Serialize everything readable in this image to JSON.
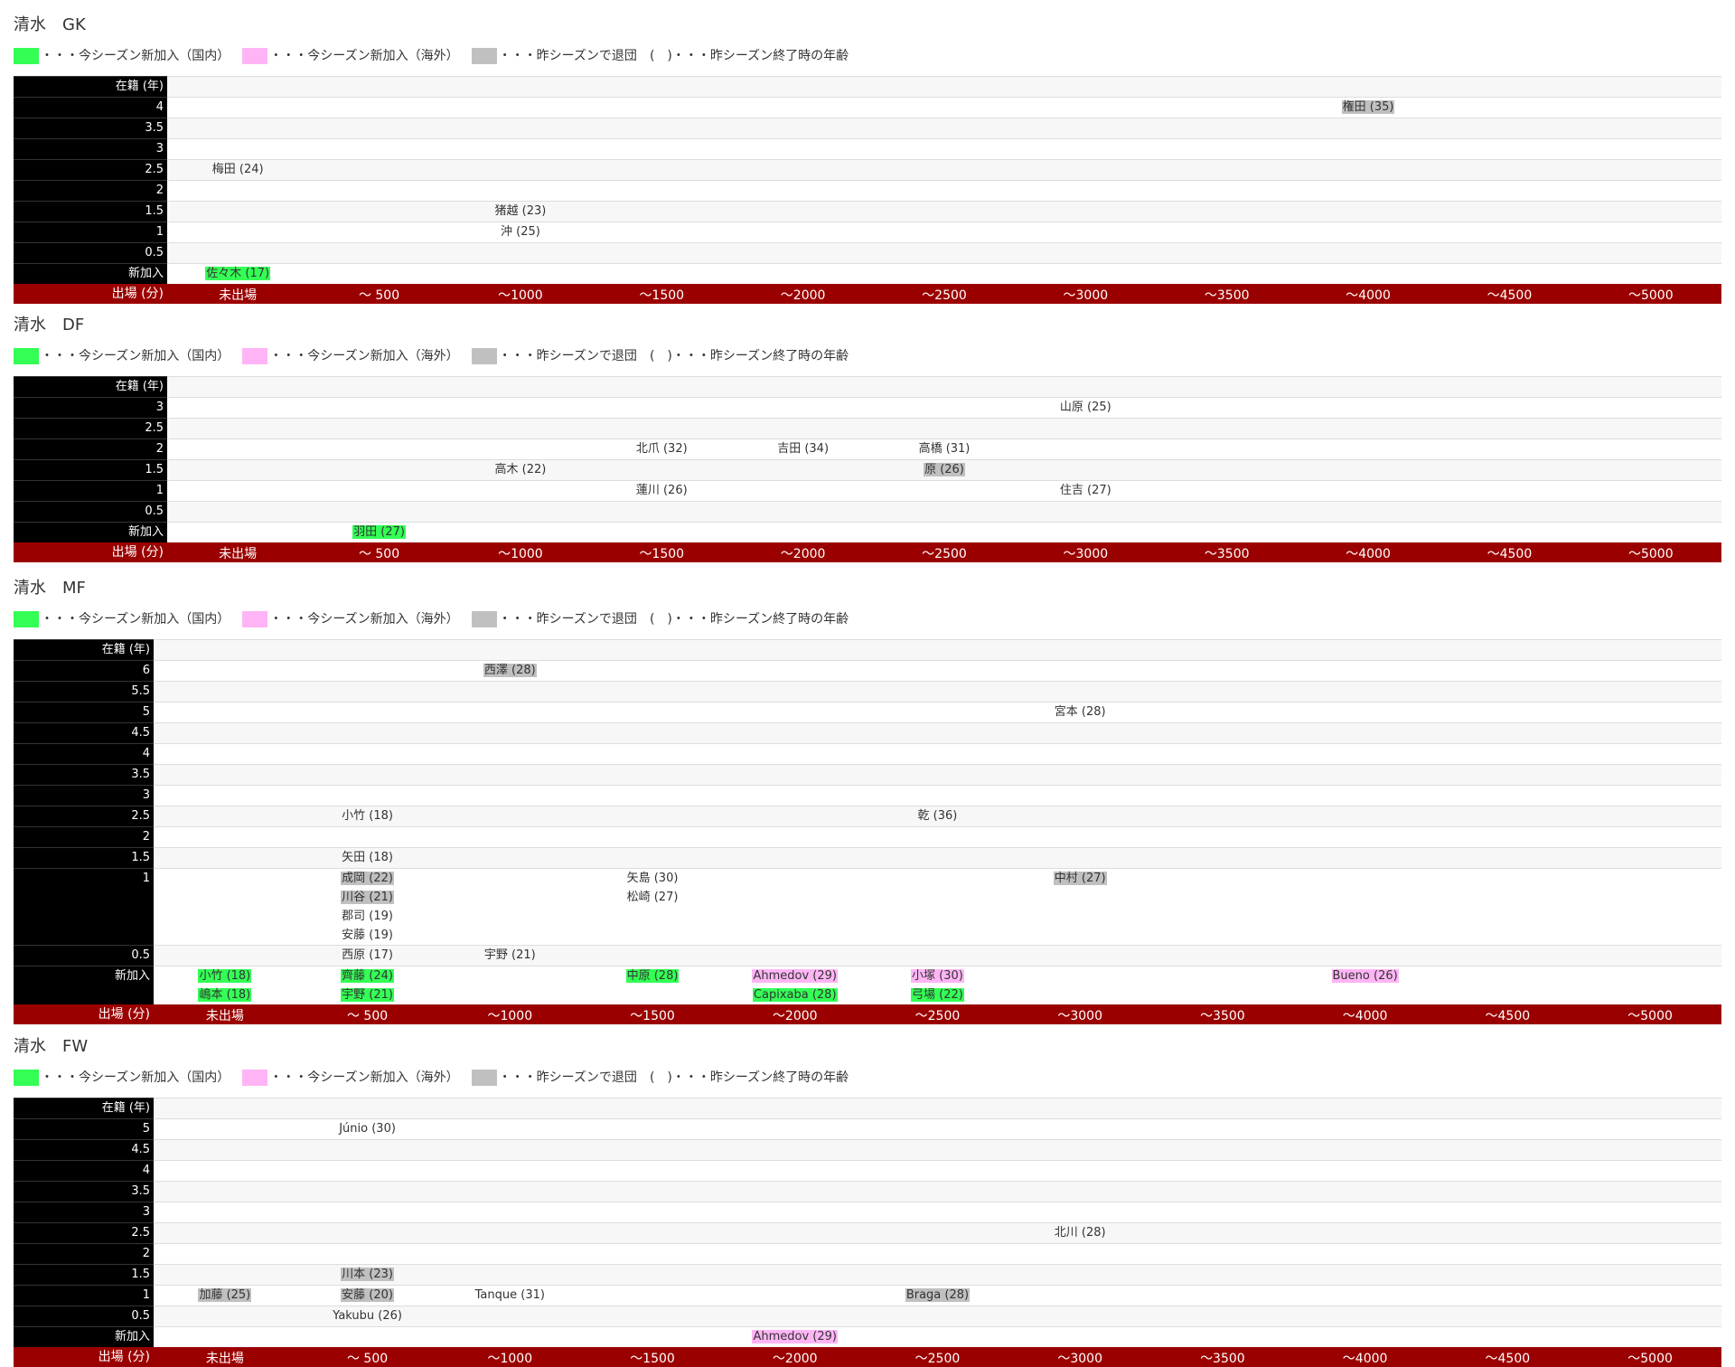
{
  "legend": {
    "domestic": "・・・今シーズン新加入（国内）",
    "overseas": "・・・今シーズン新加入（海外）",
    "retired": "・・・昨シーズンで退団",
    "age": "(　)・・・昨シーズン終了時の年齢"
  },
  "colors": {
    "domestic": "#33ff55",
    "overseas": "#ffb5f5",
    "retired": "#c0c0c0",
    "axis": "#9b0000"
  },
  "sections": [
    {
      "title": "清水　GK",
      "label_col": "在籍 (年)",
      "axis_label": "出場 (分)",
      "axis": [
        "未出場",
        "～ 500",
        "～1000",
        "～1500",
        "～2000",
        "～2500",
        "～3000",
        "～3500",
        "～4000",
        "～4500",
        "～5000"
      ],
      "rows": [
        {
          "label": "4",
          "cells": {
            "8": [
              {
                "text": "権田 (35)",
                "type": "ret"
              }
            ]
          }
        },
        {
          "label": "3.5",
          "cells": {}
        },
        {
          "label": "3",
          "cells": {}
        },
        {
          "label": "2.5",
          "cells": {
            "0": [
              {
                "text": "梅田 (24)",
                "type": ""
              }
            ]
          }
        },
        {
          "label": "2",
          "cells": {}
        },
        {
          "label": "1.5",
          "cells": {
            "2": [
              {
                "text": "猪越 (23)",
                "type": ""
              }
            ]
          }
        },
        {
          "label": "1",
          "cells": {
            "2": [
              {
                "text": "沖 (25)",
                "type": ""
              }
            ]
          }
        },
        {
          "label": "0.5",
          "cells": {}
        },
        {
          "label": "新加入",
          "cells": {
            "0": [
              {
                "text": "佐々木 (17)",
                "type": "dom"
              }
            ]
          }
        }
      ]
    },
    {
      "title": "清水　DF",
      "label_col": "在籍 (年)",
      "axis_label": "出場 (分)",
      "axis": [
        "未出場",
        "～ 500",
        "～1000",
        "～1500",
        "～2000",
        "～2500",
        "～3000",
        "～3500",
        "～4000",
        "～4500",
        "～5000"
      ],
      "rows": [
        {
          "label": "3",
          "cells": {
            "6": [
              {
                "text": "山原 (25)",
                "type": ""
              }
            ]
          }
        },
        {
          "label": "2.5",
          "cells": {}
        },
        {
          "label": "2",
          "cells": {
            "3": [
              {
                "text": "北爪 (32)",
                "type": ""
              }
            ],
            "4": [
              {
                "text": "吉田 (34)",
                "type": ""
              }
            ],
            "5": [
              {
                "text": "高橋 (31)",
                "type": ""
              }
            ]
          }
        },
        {
          "label": "1.5",
          "cells": {
            "2": [
              {
                "text": "高木 (22)",
                "type": ""
              }
            ],
            "5": [
              {
                "text": "原 (26)",
                "type": "ret"
              }
            ]
          }
        },
        {
          "label": "1",
          "cells": {
            "3": [
              {
                "text": "蓮川 (26)",
                "type": ""
              }
            ],
            "6": [
              {
                "text": "住吉 (27)",
                "type": ""
              }
            ]
          }
        },
        {
          "label": "0.5",
          "cells": {}
        },
        {
          "label": "新加入",
          "cells": {
            "1": [
              {
                "text": "羽田 (27)",
                "type": "dom"
              }
            ]
          }
        }
      ]
    },
    {
      "title": "清水　MF",
      "label_col": "在籍 (年)",
      "axis_label": "出場 (分)",
      "axis": [
        "未出場",
        "～ 500",
        "～1000",
        "～1500",
        "～2000",
        "～2500",
        "～3000",
        "～3500",
        "～4000",
        "～4500",
        "～5000"
      ],
      "rows": [
        {
          "label": "6",
          "cells": {
            "2": [
              {
                "text": "西澤 (28)",
                "type": "ret"
              }
            ]
          }
        },
        {
          "label": "5.5",
          "cells": {}
        },
        {
          "label": "5",
          "cells": {
            "6": [
              {
                "text": "宮本 (28)",
                "type": ""
              }
            ]
          }
        },
        {
          "label": "4.5",
          "cells": {}
        },
        {
          "label": "4",
          "cells": {}
        },
        {
          "label": "3.5",
          "cells": {}
        },
        {
          "label": "3",
          "cells": {}
        },
        {
          "label": "2.5",
          "cells": {
            "1": [
              {
                "text": "小竹 (18)",
                "type": ""
              }
            ],
            "5": [
              {
                "text": "乾 (36)",
                "type": ""
              }
            ]
          }
        },
        {
          "label": "2",
          "cells": {}
        },
        {
          "label": "1.5",
          "cells": {
            "1": [
              {
                "text": "矢田 (18)",
                "type": ""
              }
            ]
          }
        },
        {
          "label": "1",
          "cells": {
            "1": [
              {
                "text": "成岡 (22)",
                "type": "ret"
              },
              {
                "text": "川谷 (21)",
                "type": "ret"
              },
              {
                "text": "郡司 (19)",
                "type": ""
              },
              {
                "text": "安藤 (19)",
                "type": ""
              }
            ],
            "3": [
              {
                "text": "矢島 (30)",
                "type": ""
              },
              {
                "text": "松崎 (27)",
                "type": ""
              }
            ],
            "6": [
              {
                "text": "中村 (27)",
                "type": "ret"
              }
            ]
          }
        },
        {
          "label": "0.5",
          "cells": {
            "1": [
              {
                "text": "西原 (17)",
                "type": ""
              }
            ],
            "2": [
              {
                "text": "宇野 (21)",
                "type": ""
              }
            ]
          }
        },
        {
          "label": "新加入",
          "cells": {
            "0": [
              {
                "text": "小竹 (18)",
                "type": "dom"
              },
              {
                "text": "嶋本 (18)",
                "type": "dom"
              }
            ],
            "1": [
              {
                "text": "齊藤 (24)",
                "type": "dom"
              },
              {
                "text": "宇野 (21)",
                "type": "dom"
              }
            ],
            "3": [
              {
                "text": "中原 (28)",
                "type": "dom"
              }
            ],
            "4": [
              {
                "text": "Ahmedov (29)",
                "type": "ovs"
              },
              {
                "text": "Capixaba (28)",
                "type": "dom"
              }
            ],
            "5": [
              {
                "text": "小塚 (30)",
                "type": "ovs"
              },
              {
                "text": "弓場 (22)",
                "type": "dom"
              }
            ],
            "8": [
              {
                "text": "Bueno (26)",
                "type": "ovs"
              }
            ]
          }
        }
      ]
    },
    {
      "title": "清水　FW",
      "label_col": "在籍 (年)",
      "axis_label": "出場 (分)",
      "axis": [
        "未出場",
        "～ 500",
        "～1000",
        "～1500",
        "～2000",
        "～2500",
        "～3000",
        "～3500",
        "～4000",
        "～4500",
        "～5000"
      ],
      "rows": [
        {
          "label": "5",
          "cells": {
            "1": [
              {
                "text": "Júnio (30)",
                "type": ""
              }
            ]
          }
        },
        {
          "label": "4.5",
          "cells": {}
        },
        {
          "label": "4",
          "cells": {}
        },
        {
          "label": "3.5",
          "cells": {}
        },
        {
          "label": "3",
          "cells": {}
        },
        {
          "label": "2.5",
          "cells": {
            "6": [
              {
                "text": "北川 (28)",
                "type": ""
              }
            ]
          }
        },
        {
          "label": "2",
          "cells": {}
        },
        {
          "label": "1.5",
          "cells": {
            "1": [
              {
                "text": "川本 (23)",
                "type": "ret"
              }
            ]
          }
        },
        {
          "label": "1",
          "cells": {
            "0": [
              {
                "text": "加藤 (25)",
                "type": "ret"
              }
            ],
            "1": [
              {
                "text": "安藤 (20)",
                "type": "ret"
              }
            ],
            "2": [
              {
                "text": "Tanque (31)",
                "type": ""
              }
            ],
            "5": [
              {
                "text": "Braga (28)",
                "type": "ret"
              }
            ]
          }
        },
        {
          "label": "0.5",
          "cells": {
            "1": [
              {
                "text": "Yakubu (26)",
                "type": ""
              }
            ]
          }
        },
        {
          "label": "新加入",
          "cells": {
            "4": [
              {
                "text": "Ahmedov (29)",
                "type": "ovs"
              }
            ]
          }
        }
      ]
    }
  ]
}
